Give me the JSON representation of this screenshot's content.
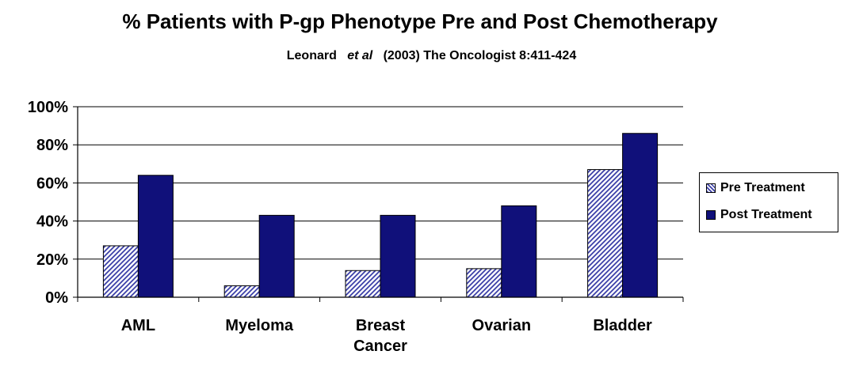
{
  "chart_data": {
    "type": "bar",
    "title": "% Patients with P-gp Phenotype Pre and Post Chemotherapy",
    "subtitle": {
      "author": "Leonard",
      "etal": "et al",
      "citation": "(2003) The Oncologist 8:411-424"
    },
    "categories": [
      [
        "AML"
      ],
      [
        "Myeloma"
      ],
      [
        "Breast",
        "Cancer"
      ],
      [
        "Ovarian"
      ],
      [
        "Bladder"
      ]
    ],
    "series": [
      {
        "name": "Pre Treatment",
        "values": [
          27,
          6,
          14,
          15,
          67
        ],
        "pattern": "hatched"
      },
      {
        "name": "Post Treatment",
        "values": [
          64,
          43,
          43,
          48,
          86
        ],
        "pattern": "solid"
      }
    ],
    "yticks": [
      "0%",
      "20%",
      "40%",
      "60%",
      "80%",
      "100%"
    ],
    "ylim": [
      0,
      100
    ],
    "xlabel": "",
    "ylabel": "",
    "grid": true,
    "legend_position": "right",
    "colors": {
      "pre_hatch": "#3b3fa8",
      "post_fill": "#10107a",
      "grid": "#000000"
    }
  }
}
